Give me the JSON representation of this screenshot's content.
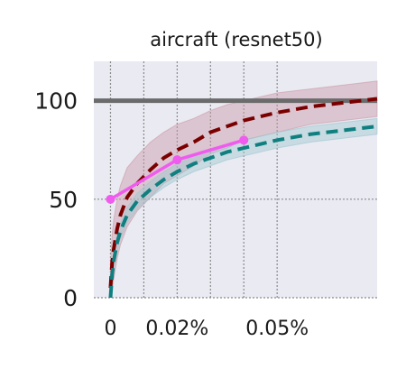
{
  "chart_data": {
    "type": "line",
    "title": "aircraft (resnet50)",
    "xlabel": "",
    "ylabel": "",
    "xlim": [
      -5e-05,
      0.0008
    ],
    "ylim": [
      0,
      120
    ],
    "x_ticks": [
      {
        "value": 0,
        "label": "0"
      },
      {
        "value": 0.0002,
        "label": "0.02%"
      },
      {
        "value": 0.0005,
        "label": "0.05%"
      }
    ],
    "x_grid": [
      0,
      0.0001,
      0.0002,
      0.0003,
      0.0004,
      0.0005
    ],
    "y_ticks": [
      {
        "value": 0,
        "label": "0"
      },
      {
        "value": 50,
        "label": "50"
      },
      {
        "value": 100,
        "label": "100"
      }
    ],
    "grid": true,
    "reference_line": {
      "y": 100,
      "color": "#6b6b6b"
    },
    "colors": {
      "background": "#e9eaf2",
      "grid": "#8a8a8a",
      "dark_red": "#7a0000",
      "teal": "#0f7f7f",
      "magenta": "#f05bef"
    },
    "series": [
      {
        "style": "dashed",
        "color": "#7a0000",
        "band_color": "#c99aa6",
        "x": [
          0,
          5e-06,
          1e-05,
          2e-05,
          3e-05,
          5e-05,
          8e-05,
          0.00012,
          0.00016,
          0.0002,
          0.00025,
          0.0003,
          0.00035,
          0.0004,
          0.00045,
          0.0005,
          0.0006,
          0.0007,
          0.0008
        ],
        "y": [
          5,
          18,
          25,
          35,
          42,
          51,
          58,
          65,
          71,
          75,
          79,
          84,
          87,
          90,
          92,
          94,
          97,
          99,
          101
        ],
        "band": [
          12,
          14,
          15,
          15,
          15,
          15,
          14,
          14,
          13,
          13,
          12,
          11,
          11,
          10,
          10,
          10,
          9,
          9,
          9
        ]
      },
      {
        "style": "dashed",
        "color": "#0f7f7f",
        "band_color": "#9fc7cf",
        "x": [
          0,
          5e-06,
          1e-05,
          2e-05,
          3e-05,
          5e-05,
          8e-05,
          0.00012,
          0.00016,
          0.0002,
          0.00025,
          0.0003,
          0.00035,
          0.0004,
          0.00045,
          0.0005,
          0.0006,
          0.0007,
          0.0008
        ],
        "y": [
          0,
          12,
          19,
          28,
          34,
          42,
          49,
          55,
          60,
          64,
          68,
          71,
          74,
          76,
          78,
          80,
          83,
          85,
          87
        ],
        "band": [
          4,
          4,
          4,
          4,
          4,
          4,
          4,
          4,
          4,
          4,
          4,
          4,
          4,
          4,
          4,
          4,
          4,
          4,
          4
        ]
      },
      {
        "style": "solid-markers",
        "color": "#f05bef",
        "x": [
          0,
          0.0002,
          0.0004
        ],
        "y": [
          50,
          70,
          80
        ]
      }
    ]
  }
}
